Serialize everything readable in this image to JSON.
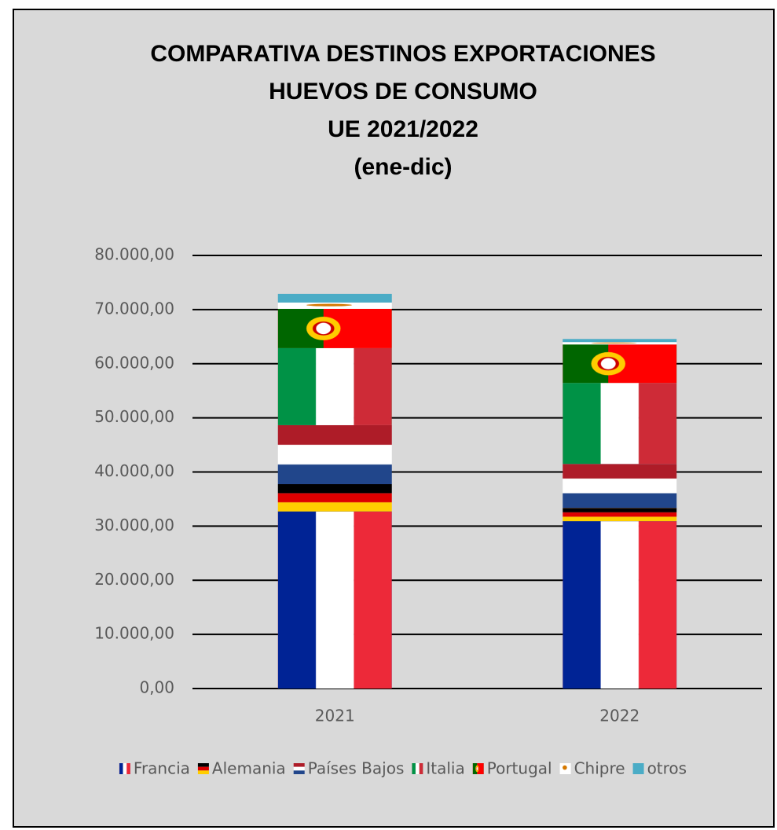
{
  "chart_data": {
    "type": "stacked_bar",
    "title": [
      "COMPARATIVA DESTINOS EXPORTACIONES",
      "HUEVOS DE CONSUMO",
      "UE 2021/2022",
      "(ene-dic)"
    ],
    "categories": [
      "2021",
      "2022"
    ],
    "series": [
      {
        "name": "Francia",
        "color": "#002395",
        "values": [
          32700,
          30900
        ]
      },
      {
        "name": "Alemania",
        "color": "#000000",
        "values": [
          5050,
          2460
        ]
      },
      {
        "name": "Países Bajos",
        "color": "#21468b",
        "values": [
          10900,
          8130
        ]
      },
      {
        "name": "Italia",
        "color": "#009246",
        "values": [
          14230,
          14960
        ]
      },
      {
        "name": "Portugal",
        "color": "#ff0000",
        "values": [
          7260,
          7110
        ]
      },
      {
        "name": "Chipre",
        "color": "#d57800",
        "values": [
          1160,
          440
        ]
      },
      {
        "name": "otros",
        "color": "#4bacc6",
        "values": [
          1600,
          570
        ]
      }
    ],
    "ylim": [
      0,
      80000
    ],
    "yticks": [
      {
        "value": 0,
        "label": "0,00"
      },
      {
        "value": 10000,
        "label": "10.000,00"
      },
      {
        "value": 20000,
        "label": "20.000,00"
      },
      {
        "value": 30000,
        "label": "30.000,00"
      },
      {
        "value": 40000,
        "label": "40.000,00"
      },
      {
        "value": 50000,
        "label": "50.000,00"
      },
      {
        "value": 60000,
        "label": "60.000,00"
      },
      {
        "value": 70000,
        "label": "70.000,00"
      },
      {
        "value": 80000,
        "label": "80.000,00"
      }
    ],
    "grid": true,
    "legend": "bottom"
  }
}
